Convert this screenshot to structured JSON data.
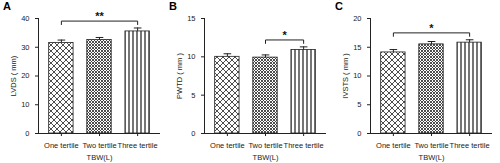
{
  "chart_data": [
    {
      "type": "bar",
      "title": "A",
      "categories": [
        "One tertile",
        "Two tertile",
        "Three tertile"
      ],
      "values": [
        31.5,
        32.5,
        35.5
      ],
      "errors": [
        1.0,
        0.9,
        1.2
      ],
      "xlabel": "TBW(L)",
      "ylabel": "LVDS ( mm)",
      "ylim": [
        0,
        40
      ],
      "yticks": [
        0,
        10,
        20,
        30,
        40
      ],
      "colors": [
        "#3a3a3a",
        "#3a3a3a",
        "#3a3a3a"
      ],
      "significance": [
        {
          "between": [
            0,
            2
          ],
          "label": "**"
        }
      ]
    },
    {
      "type": "bar",
      "title": "B",
      "categories": [
        "One tertile",
        "Two tertile",
        "Three tertile"
      ],
      "values": [
        10.0,
        9.9,
        10.9
      ],
      "errors": [
        0.4,
        0.35,
        0.4
      ],
      "xlabel": "TBW(L)",
      "ylabel": "PWTD ( mm )",
      "ylim": [
        0,
        15
      ],
      "yticks": [
        0,
        5,
        10,
        15
      ],
      "colors": [
        "#3a3a3a",
        "#3a3a3a",
        "#3a3a3a"
      ],
      "significance": [
        {
          "between": [
            1,
            2
          ],
          "label": "*"
        }
      ]
    },
    {
      "type": "bar",
      "title": "C",
      "categories": [
        "One tertile",
        "Two tertile",
        "Three tertile"
      ],
      "values": [
        14.1,
        15.5,
        15.8
      ],
      "errors": [
        0.5,
        0.5,
        0.5
      ],
      "xlabel": "TBW(L)",
      "ylabel": "IVSTS ( mm )",
      "ylim": [
        0,
        20
      ],
      "yticks": [
        0,
        5,
        10,
        15,
        20
      ],
      "colors": [
        "#3a3a3a",
        "#3a3a3a",
        "#3a3a3a"
      ],
      "significance": [
        {
          "between": [
            0,
            2
          ],
          "label": "*"
        }
      ]
    }
  ]
}
